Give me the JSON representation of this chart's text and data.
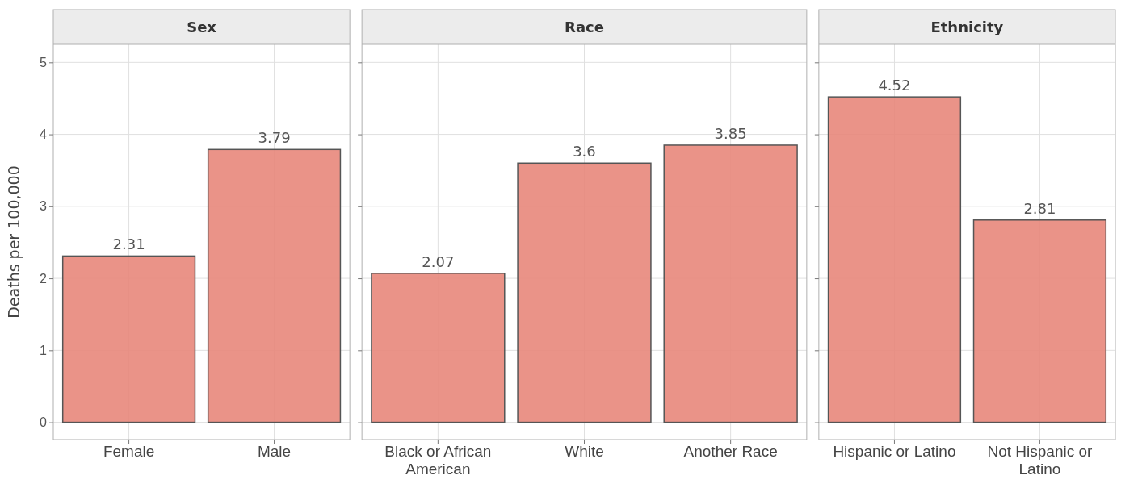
{
  "chart_data": [
    {
      "type": "bar",
      "title": "Sex",
      "categories": [
        "Female",
        "Male"
      ],
      "values": [
        2.31,
        3.79
      ],
      "color": "#e8877b",
      "ylim": [
        -0.24,
        5.25
      ],
      "yticks": [
        0,
        1,
        2,
        3,
        4,
        5
      ],
      "grid": true,
      "data_labels": true,
      "ylabel": "Deaths per 100,000"
    },
    {
      "type": "bar",
      "title": "Race",
      "categories": [
        "Black or African American",
        "White",
        "Another Race"
      ],
      "values": [
        2.07,
        3.6,
        3.85
      ],
      "color": "#e8877b",
      "ylim": [
        -0.24,
        5.25
      ],
      "yticks": [
        0,
        1,
        2,
        3,
        4,
        5
      ],
      "grid": true,
      "data_labels": true,
      "tick_labels": "x"
    },
    {
      "type": "bar",
      "title": "Ethnicity",
      "categories": [
        "Hispanic or Latino",
        "Not Hispanic or Latino"
      ],
      "values": [
        4.52,
        2.81
      ],
      "color": "#e8877b",
      "ylim": [
        -0.24,
        5.25
      ],
      "yticks": [
        0,
        1,
        2,
        3,
        4,
        5
      ],
      "grid": true,
      "data_labels": true,
      "tick_labels": "x"
    }
  ]
}
